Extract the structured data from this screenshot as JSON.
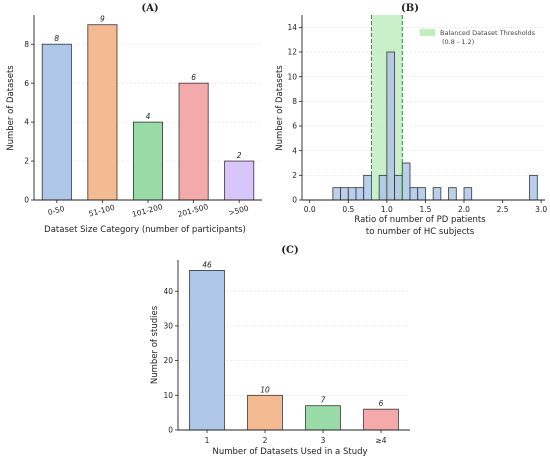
{
  "colors": {
    "blue": "#aec7e8",
    "orange": "#f4bb93",
    "green": "#98dba6",
    "pink": "#f4aaaa",
    "purple": "#d8c6fb",
    "threshold_fill": "#a6e6a6",
    "threshold_line": "#2e8b2e",
    "edge": "#333333"
  },
  "chart_data": [
    {
      "panel": "(A)",
      "type": "bar",
      "title": "(A)",
      "xlabel": "Dataset Size Category (number of participants)",
      "ylabel": "Number of Datasets",
      "categories": [
        "0-50",
        "51-100",
        "101-200",
        "201-500",
        ">500"
      ],
      "values": [
        8,
        9,
        4,
        6,
        2
      ],
      "data_labels": [
        "8",
        "9",
        "4",
        "6",
        "2"
      ],
      "bar_colors": [
        "blue",
        "orange",
        "green",
        "pink",
        "purple"
      ],
      "ylim": [
        0,
        9.5
      ],
      "yticks": [
        "0",
        "2",
        "4",
        "6",
        "8"
      ],
      "grid": true
    },
    {
      "panel": "(B)",
      "type": "bar",
      "subtype": "histogram",
      "title": "(B)",
      "xlabel": "Ratio of number of PD patients",
      "xlabel_line2": "to number of HC subjects",
      "ylabel": "Number of Datasets",
      "bin_width": 0.1,
      "bins": [
        {
          "start": 0.3,
          "count": 1
        },
        {
          "start": 0.4,
          "count": 1
        },
        {
          "start": 0.5,
          "count": 1
        },
        {
          "start": 0.6,
          "count": 1
        },
        {
          "start": 0.7,
          "count": 2
        },
        {
          "start": 0.8,
          "count": 0
        },
        {
          "start": 0.9,
          "count": 2
        },
        {
          "start": 1.0,
          "count": 12
        },
        {
          "start": 1.1,
          "count": 2
        },
        {
          "start": 1.2,
          "count": 3
        },
        {
          "start": 1.3,
          "count": 1
        },
        {
          "start": 1.4,
          "count": 1
        },
        {
          "start": 1.6,
          "count": 1
        },
        {
          "start": 1.8,
          "count": 1
        },
        {
          "start": 2.0,
          "count": 1
        },
        {
          "start": 2.85,
          "count": 2
        }
      ],
      "xlim": [
        -0.1,
        3.05
      ],
      "ylim": [
        0,
        15
      ],
      "xticks": [
        "0.0",
        "0.5",
        "1.0",
        "1.5",
        "2.0",
        "2.5",
        "3.0"
      ],
      "yticks": [
        "0",
        "2",
        "4",
        "6",
        "8",
        "10",
        "12",
        "14"
      ],
      "threshold_band": [
        0.8,
        1.2
      ],
      "legend": {
        "label": "Balanced Dataset Thresholds",
        "label_line2": "(0.8 - 1.2)",
        "placement": "top-right"
      },
      "grid": true
    },
    {
      "panel": "(C)",
      "type": "bar",
      "title": "(C)",
      "xlabel": "Number of Datasets Used in a Study",
      "ylabel": "Number of studies",
      "categories": [
        "1",
        "2",
        "3",
        "≥4"
      ],
      "values": [
        46,
        10,
        7,
        6
      ],
      "data_labels": [
        "46",
        "10",
        "7",
        "6"
      ],
      "bar_colors": [
        "blue",
        "orange",
        "green",
        "pink"
      ],
      "ylim": [
        0,
        49
      ],
      "yticks": [
        "0",
        "10",
        "20",
        "30",
        "40"
      ],
      "grid": true
    }
  ]
}
